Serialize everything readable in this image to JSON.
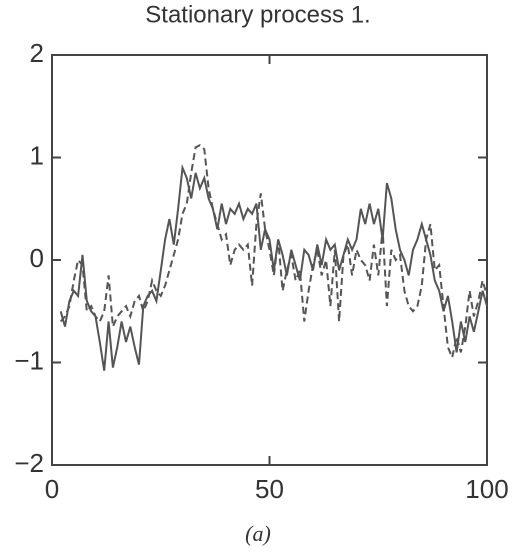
{
  "chart_data": {
    "type": "line",
    "title": "Stationary process 1.",
    "caption": "(a)",
    "x": [
      2,
      3,
      4,
      5,
      6,
      7,
      8,
      9,
      10,
      11,
      12,
      13,
      14,
      15,
      16,
      17,
      18,
      19,
      20,
      21,
      22,
      23,
      24,
      25,
      26,
      27,
      28,
      29,
      30,
      31,
      32,
      33,
      34,
      35,
      36,
      37,
      38,
      39,
      40,
      41,
      42,
      43,
      44,
      45,
      46,
      47,
      48,
      49,
      50,
      51,
      52,
      53,
      54,
      55,
      56,
      57,
      58,
      59,
      60,
      61,
      62,
      63,
      64,
      65,
      66,
      67,
      68,
      69,
      70,
      71,
      72,
      73,
      74,
      75,
      76,
      77,
      78,
      79,
      80,
      81,
      82,
      83,
      84,
      85,
      86,
      87,
      88,
      89,
      90,
      91,
      92,
      93,
      94,
      95,
      96,
      97,
      98,
      99,
      100
    ],
    "series": [
      {
        "color": "#555",
        "dash": false,
        "values": [
          -0.5,
          -0.65,
          -0.4,
          -0.3,
          -0.35,
          0.05,
          -0.4,
          -0.5,
          -0.55,
          -0.8,
          -1.08,
          -0.6,
          -1.05,
          -0.85,
          -0.6,
          -0.8,
          -0.65,
          -0.85,
          -1.02,
          -0.45,
          -0.35,
          -0.3,
          -0.4,
          -0.1,
          0.2,
          0.4,
          0.15,
          0.5,
          0.9,
          0.8,
          0.6,
          0.85,
          0.7,
          0.8,
          0.6,
          0.5,
          0.3,
          0.55,
          0.35,
          0.5,
          0.45,
          0.55,
          0.4,
          0.5,
          0.45,
          0.55,
          0.1,
          0.3,
          0.2,
          -0.1,
          0.2,
          0.05,
          -0.15,
          0.1,
          -0.05,
          -0.2,
          0.1,
          0.05,
          -0.1,
          0.15,
          -0.05,
          0.2,
          0.1,
          0.15,
          -0.1,
          0.05,
          0.2,
          0.1,
          0.2,
          0.5,
          0.35,
          0.55,
          0.35,
          0.5,
          0.2,
          0.75,
          0.6,
          0.3,
          0.1,
          0.0,
          -0.15,
          0.1,
          0.2,
          0.35,
          0.2,
          0.05,
          -0.2,
          -0.3,
          -0.5,
          -0.35,
          -0.6,
          -0.9,
          -0.6,
          -0.8,
          -0.55,
          -0.7,
          -0.5,
          -0.3,
          -0.45
        ]
      },
      {
        "color": "#555",
        "dash": true,
        "values": [
          -0.6,
          -0.55,
          -0.45,
          -0.2,
          0.0,
          -0.05,
          -0.5,
          -0.45,
          -0.55,
          -0.6,
          -0.5,
          -0.15,
          -0.65,
          -0.55,
          -0.5,
          -0.45,
          -0.55,
          -0.4,
          -0.35,
          -0.5,
          -0.4,
          -0.2,
          -0.3,
          -0.35,
          -0.25,
          -0.1,
          0.05,
          0.2,
          0.45,
          0.55,
          0.85,
          1.1,
          1.12,
          1.08,
          0.7,
          0.5,
          0.35,
          0.2,
          0.25,
          -0.05,
          0.1,
          0.15,
          0.1,
          0.15,
          -0.25,
          0.35,
          0.65,
          0.3,
          0.1,
          -0.15,
          0.2,
          -0.3,
          -0.1,
          0.05,
          -0.2,
          -0.1,
          -0.6,
          -0.3,
          -0.05,
          0.1,
          -0.15,
          0.0,
          -0.45,
          0.1,
          -0.6,
          0.05,
          0.15,
          -0.15,
          0.1,
          0.0,
          -0.05,
          -0.2,
          0.15,
          -0.15,
          0.3,
          -0.45,
          0.1,
          0.0,
          0.05,
          -0.3,
          -0.45,
          -0.5,
          -0.45,
          -0.25,
          0.2,
          0.35,
          -0.1,
          -0.05,
          -0.45,
          -0.85,
          -0.95,
          -0.75,
          -0.9,
          -0.65,
          -0.3,
          -0.55,
          -0.4,
          -0.2,
          -0.35
        ]
      }
    ],
    "xlim": [
      0,
      100
    ],
    "xticks": [
      0,
      50,
      100
    ],
    "ylim": [
      -2,
      2
    ],
    "yticks": [
      {
        "value": -2,
        "label": "−2"
      },
      {
        "value": -1,
        "label": "−1"
      },
      0,
      1,
      2
    ]
  }
}
